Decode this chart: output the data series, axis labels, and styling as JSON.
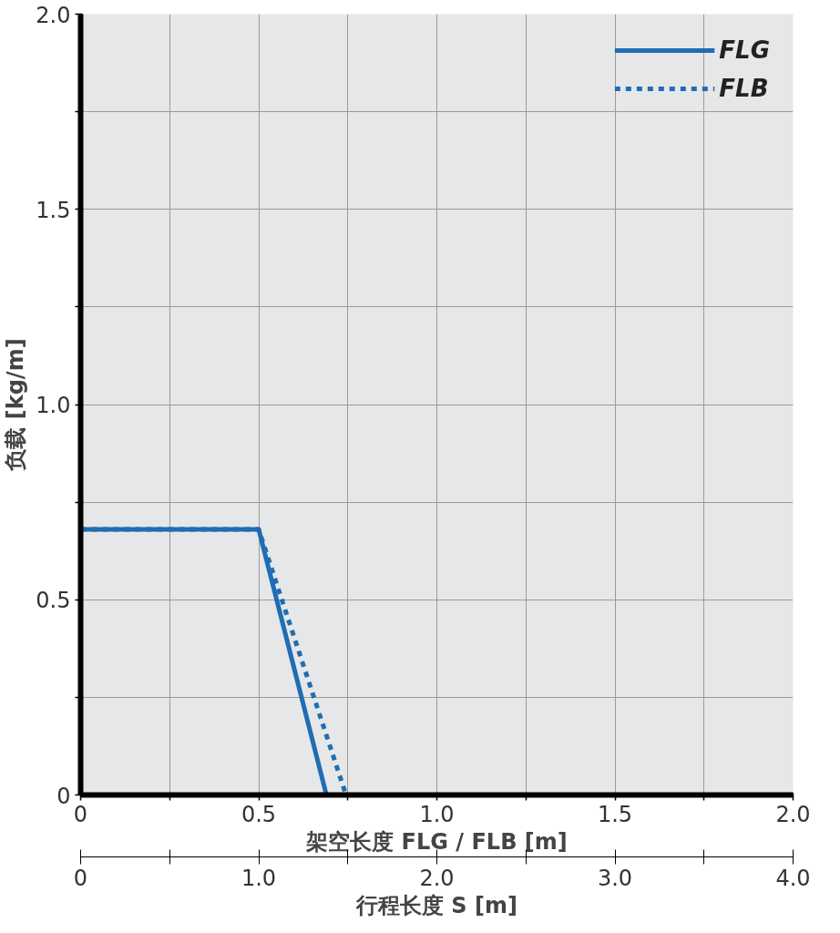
{
  "chart_data": {
    "type": "line",
    "xlabel": "架空长度 FLG / FLB [m]",
    "ylabel": "负载 [kg/m]",
    "x2label": "行程长度 S [m]",
    "xlim": [
      0,
      2
    ],
    "ylim": [
      0,
      2
    ],
    "x2lim": [
      0,
      4
    ],
    "xticks": [
      0,
      {
        "value": 0.25,
        "label": null
      },
      0.5,
      {
        "value": 0.75,
        "label": null
      },
      {
        "value": 1,
        "label": "1.0"
      },
      {
        "value": 1.25,
        "label": null
      },
      1.5,
      {
        "value": 1.75,
        "label": null
      },
      {
        "value": 2,
        "label": "2.0"
      }
    ],
    "yticks": [
      0,
      {
        "value": 0.25,
        "label": null
      },
      0.5,
      {
        "value": 0.75,
        "label": null
      },
      {
        "value": 1,
        "label": "1.0"
      },
      {
        "value": 1.25,
        "label": null
      },
      1.5,
      {
        "value": 1.75,
        "label": null
      },
      {
        "value": 2,
        "label": "2.0"
      }
    ],
    "x2ticks": [
      0,
      {
        "value": 0.5,
        "label": null
      },
      {
        "value": 1,
        "label": "1.0"
      },
      {
        "value": 1.5,
        "label": null
      },
      {
        "value": 2,
        "label": "2.0"
      },
      {
        "value": 2.5,
        "label": null
      },
      {
        "value": 3,
        "label": "3.0"
      },
      {
        "value": 3.5,
        "label": null
      },
      {
        "value": 4,
        "label": "4.0"
      }
    ],
    "grid": true,
    "legend": "top right",
    "marker": "none",
    "series": [
      {
        "name": "FLG",
        "color": "#1f6db3",
        "line_style": "solid",
        "x": [
          0,
          0.5,
          0.69
        ],
        "values": [
          0.68,
          0.68,
          0
        ]
      },
      {
        "name": "FLB",
        "color": "#1f6db3",
        "line_style": "dashed",
        "x": [
          0,
          0.5,
          0.745
        ],
        "values": [
          0.68,
          0.68,
          0
        ]
      }
    ]
  }
}
